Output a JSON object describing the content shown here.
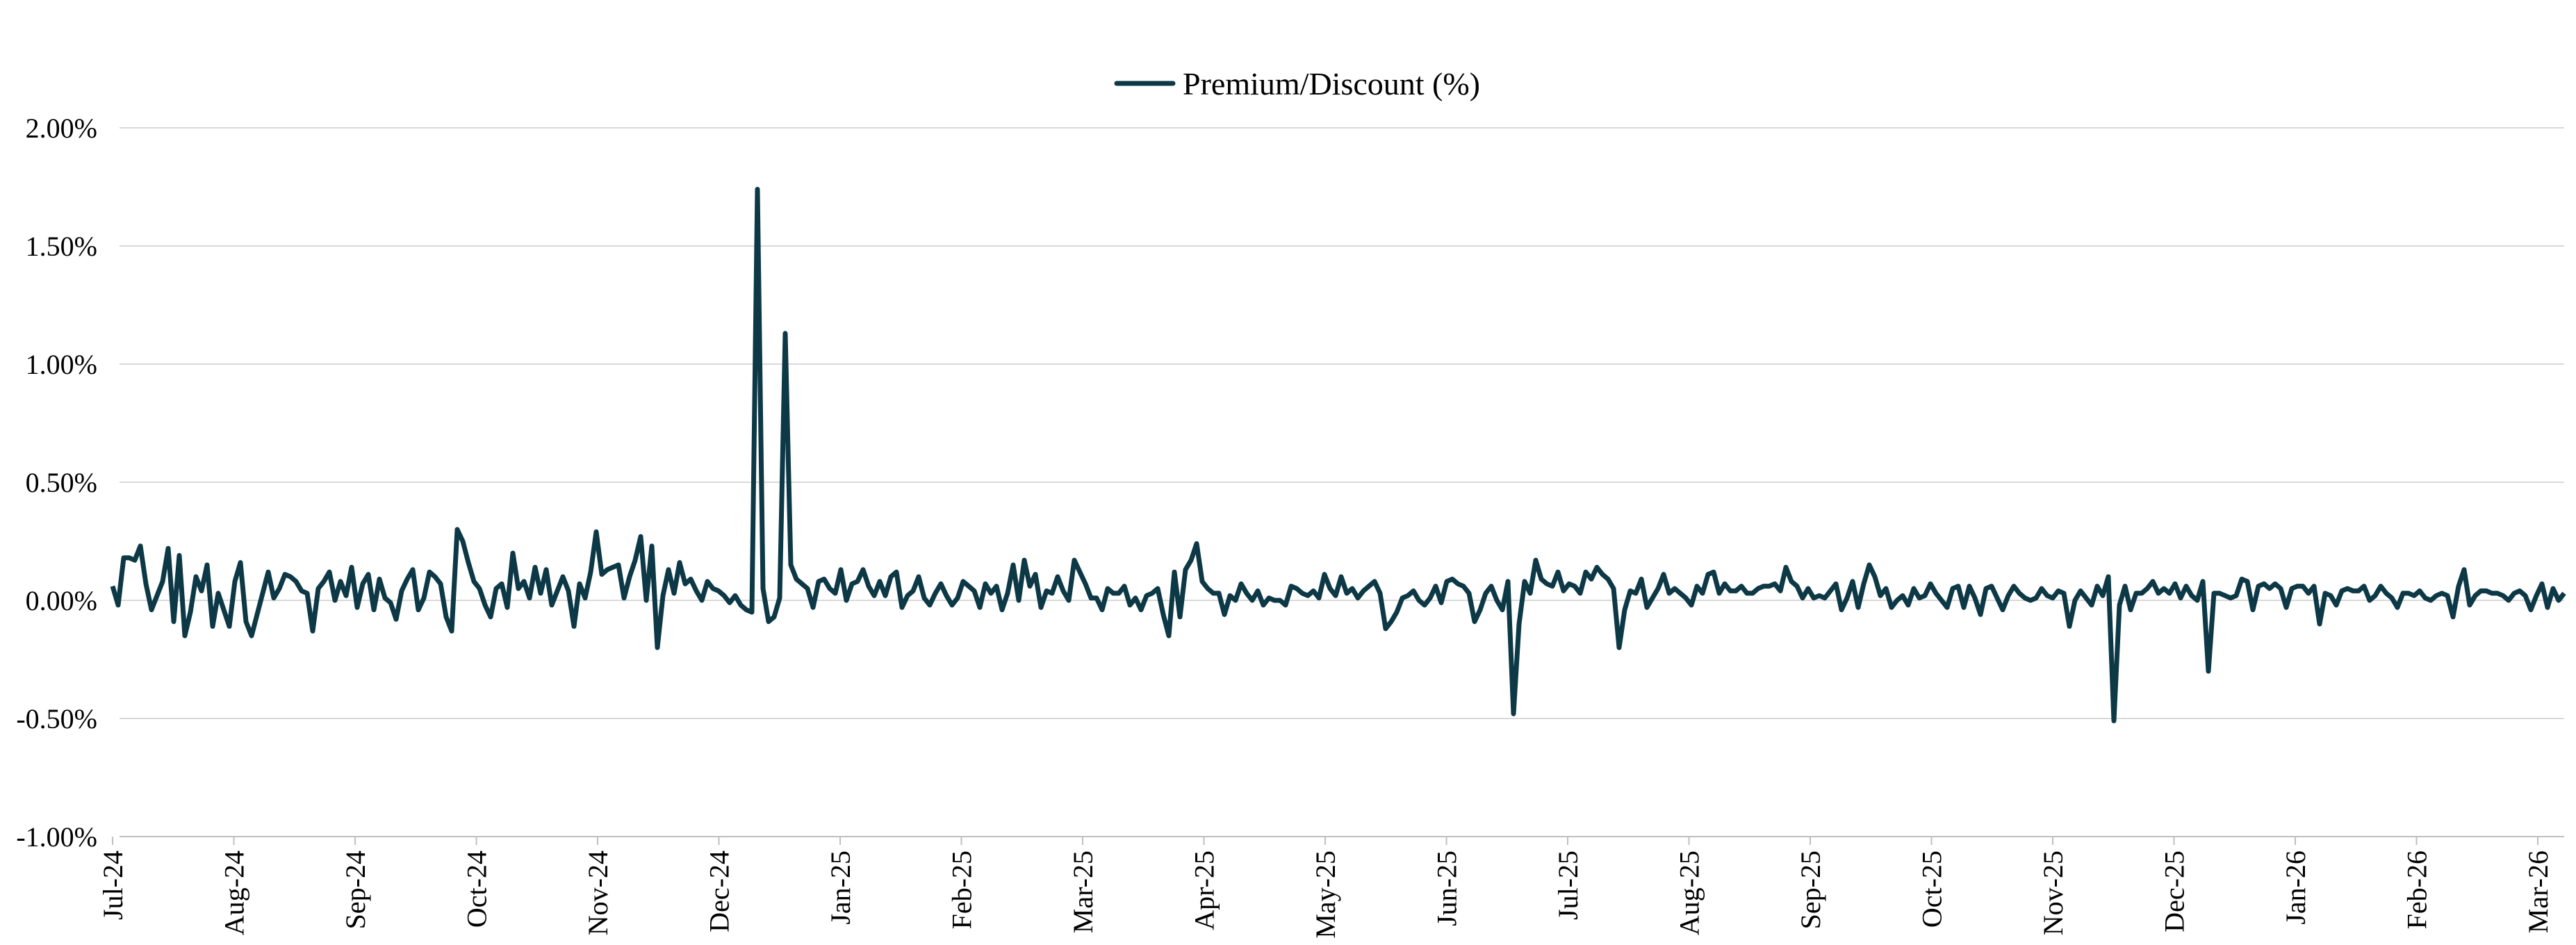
{
  "chart_data": {
    "type": "line",
    "title": "",
    "xlabel": "",
    "ylabel": "",
    "ylim": [
      -1.0,
      2.0
    ],
    "y_ticks": [
      2.0,
      1.5,
      1.0,
      0.5,
      0.0,
      -0.5,
      -1.0
    ],
    "y_tick_labels": [
      "2.00%",
      "1.50%",
      "1.00%",
      "0.50%",
      "0.00%",
      "-0.50%",
      "-1.00%"
    ],
    "x_tick_labels": [
      "Jul-24",
      "Aug-24",
      "Sep-24",
      "Oct-24",
      "Nov-24",
      "Dec-24",
      "Jan-25",
      "Feb-25",
      "Mar-25",
      "Apr-25",
      "May-25",
      "Jun-25",
      "Jul-25",
      "Aug-25",
      "Sep-25",
      "Oct-25",
      "Nov-25",
      "Dec-25",
      "Jan-26",
      "Feb-26",
      "Mar-26"
    ],
    "grid": "horizontal",
    "legend_position": "top-center",
    "series_color": "#0d3846",
    "series": [
      {
        "name": "Premium/Discount (%)",
        "values": [
          0.06,
          -0.02,
          0.18,
          0.18,
          0.17,
          0.23,
          0.07,
          -0.04,
          0.02,
          0.08,
          0.22,
          -0.09,
          0.19,
          -0.15,
          -0.05,
          0.1,
          0.04,
          0.15,
          -0.11,
          0.03,
          -0.04,
          -0.11,
          0.08,
          0.16,
          -0.09,
          -0.15,
          -0.06,
          0.03,
          0.12,
          0.01,
          0.05,
          0.11,
          0.1,
          0.08,
          0.04,
          0.03,
          -0.13,
          0.05,
          0.08,
          0.12,
          0.0,
          0.08,
          0.02,
          0.14,
          -0.03,
          0.07,
          0.11,
          -0.04,
          0.09,
          0.01,
          -0.01,
          -0.08,
          0.04,
          0.09,
          0.13,
          -0.04,
          0.01,
          0.12,
          0.1,
          0.07,
          -0.07,
          -0.13,
          0.3,
          0.25,
          0.16,
          0.08,
          0.05,
          -0.02,
          -0.07,
          0.05,
          0.07,
          -0.03,
          0.2,
          0.05,
          0.08,
          0.01,
          0.14,
          0.03,
          0.13,
          -0.02,
          0.04,
          0.1,
          0.04,
          -0.11,
          0.07,
          0.01,
          0.12,
          0.29,
          0.11,
          0.13,
          0.14,
          0.15,
          0.01,
          0.1,
          0.17,
          0.27,
          0.0,
          0.23,
          -0.2,
          0.02,
          0.13,
          0.03,
          0.16,
          0.07,
          0.09,
          0.04,
          0.0,
          0.08,
          0.05,
          0.04,
          0.02,
          -0.01,
          0.02,
          -0.02,
          -0.04,
          -0.05,
          1.74,
          0.05,
          -0.09,
          -0.07,
          0.01,
          1.13,
          0.15,
          0.09,
          0.07,
          0.05,
          -0.03,
          0.08,
          0.09,
          0.05,
          0.03,
          0.13,
          0.0,
          0.07,
          0.08,
          0.13,
          0.06,
          0.02,
          0.08,
          0.02,
          0.1,
          0.12,
          -0.03,
          0.02,
          0.04,
          0.1,
          0.01,
          -0.02,
          0.03,
          0.07,
          0.02,
          -0.02,
          0.01,
          0.08,
          0.06,
          0.04,
          -0.03,
          0.07,
          0.03,
          0.06,
          -0.04,
          0.03,
          0.15,
          0.0,
          0.17,
          0.06,
          0.11,
          -0.03,
          0.04,
          0.03,
          0.1,
          0.04,
          0.0,
          0.17,
          0.12,
          0.07,
          0.01,
          0.01,
          -0.04,
          0.05,
          0.03,
          0.03,
          0.06,
          -0.02,
          0.01,
          -0.04,
          0.02,
          0.03,
          0.05,
          -0.06,
          -0.15,
          0.12,
          -0.07,
          0.13,
          0.17,
          0.24,
          0.08,
          0.05,
          0.03,
          0.03,
          -0.06,
          0.02,
          0.0,
          0.07,
          0.03,
          0.0,
          0.04,
          -0.02,
          0.01,
          0.0,
          0.0,
          -0.02,
          0.06,
          0.05,
          0.03,
          0.02,
          0.04,
          0.01,
          0.11,
          0.05,
          0.02,
          0.1,
          0.03,
          0.05,
          0.01,
          0.04,
          0.06,
          0.08,
          0.03,
          -0.12,
          -0.09,
          -0.05,
          0.01,
          0.02,
          0.04,
          0.0,
          -0.02,
          0.01,
          0.06,
          -0.01,
          0.08,
          0.09,
          0.07,
          0.06,
          0.03,
          -0.09,
          -0.04,
          0.03,
          0.06,
          0.0,
          -0.04,
          0.08,
          -0.48,
          -0.1,
          0.08,
          0.03,
          0.17,
          0.09,
          0.07,
          0.06,
          0.12,
          0.04,
          0.07,
          0.06,
          0.03,
          0.12,
          0.09,
          0.14,
          0.11,
          0.09,
          0.05,
          -0.2,
          -0.04,
          0.04,
          0.03,
          0.09,
          -0.03,
          0.01,
          0.05,
          0.11,
          0.03,
          0.05,
          0.03,
          0.01,
          -0.02,
          0.06,
          0.03,
          0.11,
          0.12,
          0.03,
          0.07,
          0.04,
          0.04,
          0.06,
          0.03,
          0.03,
          0.05,
          0.06,
          0.06,
          0.07,
          0.04,
          0.14,
          0.08,
          0.06,
          0.01,
          0.05,
          0.01,
          0.02,
          0.01,
          0.04,
          0.07,
          -0.04,
          0.01,
          0.08,
          -0.03,
          0.07,
          0.15,
          0.1,
          0.02,
          0.05,
          -0.03,
          0.0,
          0.02,
          -0.02,
          0.05,
          0.01,
          0.02,
          0.07,
          0.03,
          0.0,
          -0.03,
          0.05,
          0.06,
          -0.03,
          0.06,
          0.01,
          -0.06,
          0.05,
          0.06,
          0.01,
          -0.04,
          0.02,
          0.06,
          0.03,
          0.01,
          0.0,
          0.01,
          0.05,
          0.02,
          0.01,
          0.04,
          0.03,
          -0.11,
          0.0,
          0.04,
          0.01,
          -0.02,
          0.06,
          0.02,
          0.1,
          -0.51,
          -0.02,
          0.06,
          -0.04,
          0.03,
          0.03,
          0.05,
          0.08,
          0.03,
          0.05,
          0.03,
          0.07,
          0.01,
          0.06,
          0.02,
          0.0,
          0.08,
          -0.3,
          0.03,
          0.03,
          0.02,
          0.01,
          0.02,
          0.09,
          0.08,
          -0.04,
          0.06,
          0.07,
          0.05,
          0.07,
          0.05,
          -0.03,
          0.05,
          0.06,
          0.06,
          0.03,
          0.06,
          -0.1,
          0.03,
          0.02,
          -0.02,
          0.04,
          0.05,
          0.04,
          0.04,
          0.06,
          0.0,
          0.02,
          0.06,
          0.03,
          0.01,
          -0.03,
          0.03,
          0.03,
          0.02,
          0.04,
          0.01,
          0.0,
          0.02,
          0.03,
          0.02,
          -0.07,
          0.06,
          0.13,
          -0.02,
          0.02,
          0.04,
          0.04,
          0.03,
          0.03,
          0.02,
          0.0,
          0.03,
          0.04,
          0.02,
          -0.04,
          0.02,
          0.07,
          -0.03,
          0.05,
          0.0,
          0.03
        ]
      }
    ]
  }
}
